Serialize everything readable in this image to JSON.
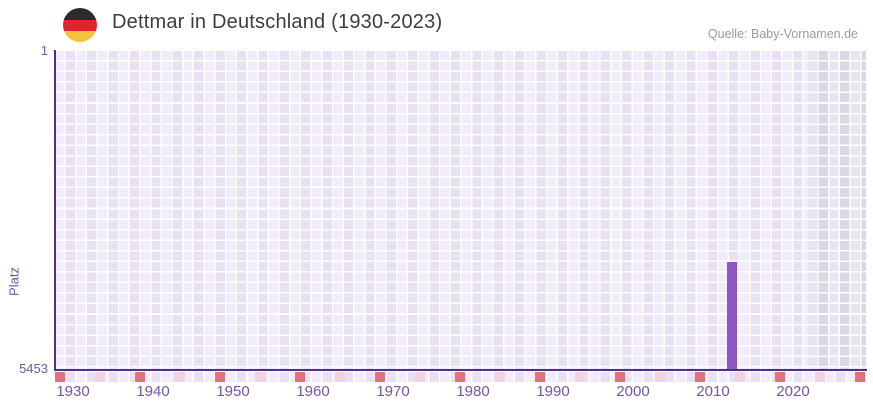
{
  "header": {
    "title": "Dettmar in Deutschland (1930-2023)",
    "source": "Quelle: Baby-Vornamen.de",
    "flag": "german-flag-icon"
  },
  "chart_data": {
    "type": "bar",
    "title": "Dettmar in Deutschland (1930-2023)",
    "ylabel": "Platz",
    "y_axis": {
      "top_tick": "1",
      "bottom_tick": "5453",
      "min": 1,
      "max": 5453,
      "inverted": true,
      "note": "rank scale, 1 (best) at top, 5453 at bottom"
    },
    "x_axis": {
      "tick_labels": [
        "1930",
        "1940",
        "1950",
        "1960",
        "1970",
        "1980",
        "1990",
        "2000",
        "2010",
        "2020"
      ],
      "range_start": 1930,
      "range_end": 2023
    },
    "series": [
      {
        "name": "Dettmar",
        "points": [
          {
            "year": 2013,
            "rank": 3600
          }
        ]
      }
    ],
    "decade_marker_years": [
      1930,
      1940,
      1950,
      1960,
      1970,
      1980,
      1990,
      2000,
      2010,
      2020
    ],
    "half_decade_marker_years": [
      1935,
      1945,
      1955,
      1965,
      1975,
      1985,
      1995,
      2005,
      2015,
      2025
    ],
    "end_marker": true,
    "shaded_recent_region": {
      "start_year": 2022,
      "end_year": 2023
    },
    "legend": false,
    "grid": "checkered-lavender"
  },
  "colors": {
    "bar": "#8f56c3",
    "axis": "#4b2e8e",
    "tick_label": "#7456ab",
    "decade_marker": "#e0717d",
    "half_decade_marker": "#f2d2dd",
    "cell_light": "#f0ecf9",
    "cell_dark": "#e7e1f3",
    "cell_gray_light": "#e9e5f0",
    "cell_gray_dark": "#dcd7e6",
    "title_text": "#3d3d3d",
    "source_text": "#9b9b9b",
    "flag_black": "#2b2b2b",
    "flag_red": "#e0232e",
    "flag_gold": "#f5c33b"
  }
}
